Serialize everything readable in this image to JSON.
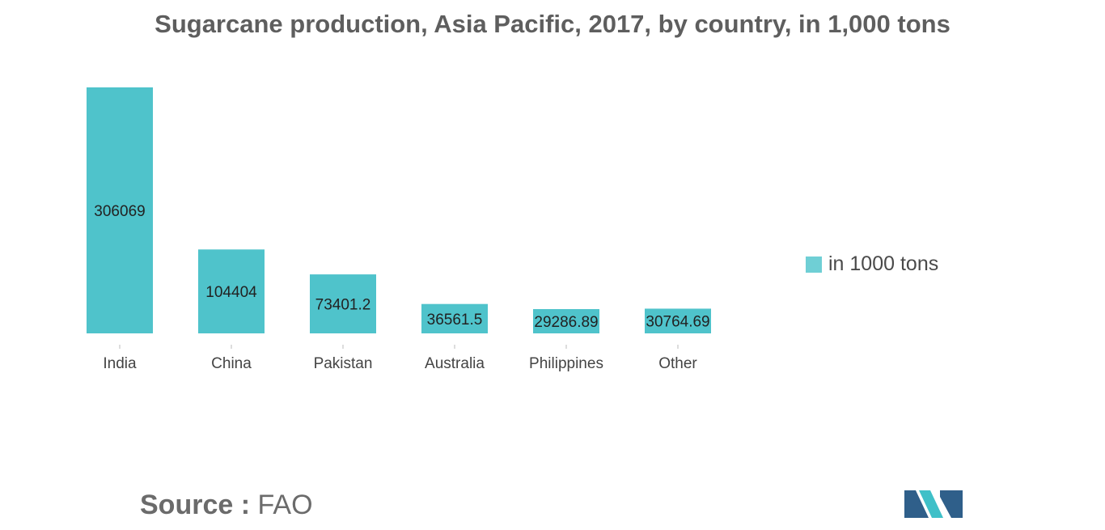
{
  "title": "Sugarcane production, Asia Pacific, 2017, by country, in 1,000 tons",
  "chart_data": {
    "type": "bar",
    "title": "Sugarcane production, Asia Pacific, 2017, by country, in 1,000 tons",
    "categories": [
      "India",
      "China",
      "Pakistan",
      "Australia",
      "Philippines",
      "Other"
    ],
    "series": [
      {
        "name": "in 1000 tons",
        "values": [
          306069,
          104404,
          73401.2,
          36561.5,
          29286.89,
          30764.69
        ]
      }
    ],
    "data_labels": [
      "306069",
      "104404",
      "73401.2",
      "36561.5",
      "29286.89",
      "30764.69"
    ],
    "ylim": [
      0,
      306069
    ],
    "grid": false,
    "legend_position": "right",
    "bar_color": "#4fc3cb"
  },
  "legend": {
    "label": "in 1000 tons",
    "color": "#6fcfd5"
  },
  "source": {
    "label": "Source :",
    "value": "FAO"
  },
  "logo": {
    "colors": [
      "#2f5f8a",
      "#3fc0c8"
    ]
  }
}
